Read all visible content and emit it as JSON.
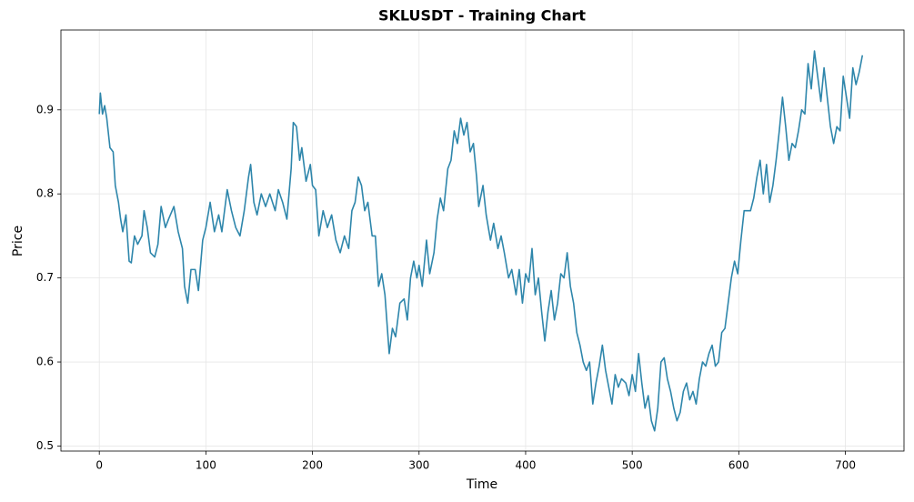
{
  "chart_data": {
    "type": "line",
    "title": "SKLUSDT - Training Chart",
    "x_label": "Time",
    "y_label": "Price",
    "x": [
      0,
      1,
      3,
      5,
      7,
      10,
      13,
      15,
      18,
      20,
      22,
      25,
      28,
      30,
      33,
      36,
      40,
      42,
      45,
      48,
      52,
      55,
      58,
      62,
      65,
      70,
      74,
      78,
      80,
      83,
      86,
      90,
      93,
      97,
      100,
      104,
      108,
      112,
      115,
      120,
      124,
      128,
      132,
      136,
      140,
      142,
      145,
      148,
      152,
      156,
      160,
      165,
      168,
      172,
      176,
      178,
      180,
      182,
      185,
      188,
      190,
      194,
      198,
      200,
      203,
      206,
      210,
      214,
      218,
      222,
      226,
      230,
      234,
      237,
      240,
      243,
      246,
      249,
      252,
      256,
      259,
      262,
      265,
      268,
      272,
      275,
      278,
      282,
      286,
      289,
      292,
      295,
      298,
      300,
      303,
      307,
      310,
      314,
      317,
      320,
      323,
      327,
      330,
      333,
      336,
      339,
      342,
      345,
      348,
      351,
      354,
      356,
      360,
      363,
      367,
      370,
      374,
      377,
      380,
      384,
      387,
      391,
      394,
      397,
      400,
      403,
      406,
      409,
      412,
      415,
      418,
      421,
      424,
      427,
      430,
      433,
      436,
      439,
      442,
      445,
      448,
      451,
      454,
      457,
      460,
      463,
      466,
      469,
      472,
      475,
      478,
      481,
      484,
      487,
      490,
      494,
      497,
      500,
      503,
      506,
      509,
      512,
      515,
      518,
      521,
      524,
      527,
      530,
      533,
      536,
      539,
      542,
      545,
      548,
      551,
      554,
      557,
      560,
      563,
      566,
      569,
      572,
      575,
      578,
      581,
      584,
      587,
      590,
      593,
      596,
      599,
      602,
      605,
      608,
      611,
      614,
      617,
      620,
      623,
      626,
      629,
      632,
      635,
      638,
      641,
      644,
      647,
      650,
      653,
      656,
      659,
      662,
      665,
      668,
      671,
      674,
      677,
      680,
      683,
      686,
      689,
      692,
      695,
      698,
      701,
      704,
      707,
      710,
      713,
      716
    ],
    "series": [
      {
        "name": "Price",
        "color": "#2e86ab",
        "values": [
          0.895,
          0.92,
          0.895,
          0.905,
          0.89,
          0.855,
          0.85,
          0.81,
          0.79,
          0.77,
          0.755,
          0.775,
          0.72,
          0.718,
          0.75,
          0.74,
          0.75,
          0.78,
          0.76,
          0.73,
          0.725,
          0.74,
          0.785,
          0.76,
          0.77,
          0.785,
          0.755,
          0.735,
          0.69,
          0.67,
          0.71,
          0.71,
          0.685,
          0.745,
          0.76,
          0.79,
          0.755,
          0.775,
          0.755,
          0.805,
          0.78,
          0.76,
          0.75,
          0.78,
          0.82,
          0.835,
          0.79,
          0.775,
          0.8,
          0.785,
          0.8,
          0.78,
          0.805,
          0.79,
          0.77,
          0.8,
          0.83,
          0.885,
          0.88,
          0.84,
          0.855,
          0.815,
          0.835,
          0.81,
          0.805,
          0.75,
          0.78,
          0.76,
          0.775,
          0.745,
          0.73,
          0.75,
          0.735,
          0.78,
          0.79,
          0.82,
          0.81,
          0.78,
          0.79,
          0.75,
          0.75,
          0.69,
          0.705,
          0.68,
          0.61,
          0.64,
          0.63,
          0.67,
          0.675,
          0.65,
          0.7,
          0.72,
          0.7,
          0.715,
          0.69,
          0.745,
          0.705,
          0.73,
          0.77,
          0.795,
          0.78,
          0.83,
          0.84,
          0.875,
          0.86,
          0.89,
          0.87,
          0.885,
          0.85,
          0.86,
          0.82,
          0.785,
          0.81,
          0.775,
          0.745,
          0.765,
          0.735,
          0.75,
          0.73,
          0.7,
          0.71,
          0.68,
          0.71,
          0.67,
          0.705,
          0.695,
          0.735,
          0.68,
          0.7,
          0.66,
          0.625,
          0.66,
          0.685,
          0.65,
          0.67,
          0.705,
          0.7,
          0.73,
          0.69,
          0.67,
          0.635,
          0.62,
          0.6,
          0.59,
          0.6,
          0.55,
          0.575,
          0.595,
          0.62,
          0.59,
          0.57,
          0.55,
          0.585,
          0.57,
          0.58,
          0.575,
          0.56,
          0.585,
          0.565,
          0.61,
          0.575,
          0.545,
          0.56,
          0.53,
          0.518,
          0.545,
          0.6,
          0.605,
          0.58,
          0.565,
          0.545,
          0.53,
          0.54,
          0.565,
          0.575,
          0.555,
          0.565,
          0.55,
          0.58,
          0.6,
          0.595,
          0.61,
          0.62,
          0.595,
          0.6,
          0.635,
          0.64,
          0.67,
          0.7,
          0.72,
          0.705,
          0.745,
          0.78,
          0.78,
          0.78,
          0.795,
          0.82,
          0.84,
          0.8,
          0.835,
          0.79,
          0.81,
          0.84,
          0.875,
          0.915,
          0.88,
          0.84,
          0.86,
          0.855,
          0.875,
          0.9,
          0.895,
          0.955,
          0.925,
          0.97,
          0.94,
          0.91,
          0.95,
          0.915,
          0.88,
          0.86,
          0.88,
          0.875,
          0.94,
          0.915,
          0.89,
          0.95,
          0.93,
          0.945,
          0.965
        ]
      }
    ],
    "xlim": [
      -36,
      755
    ],
    "ylim": [
      0.494,
      0.995
    ],
    "xticks": [
      0,
      100,
      200,
      300,
      400,
      500,
      600,
      700
    ],
    "yticks": [
      0.5,
      0.6,
      0.7,
      0.8,
      0.9
    ],
    "grid": true
  }
}
